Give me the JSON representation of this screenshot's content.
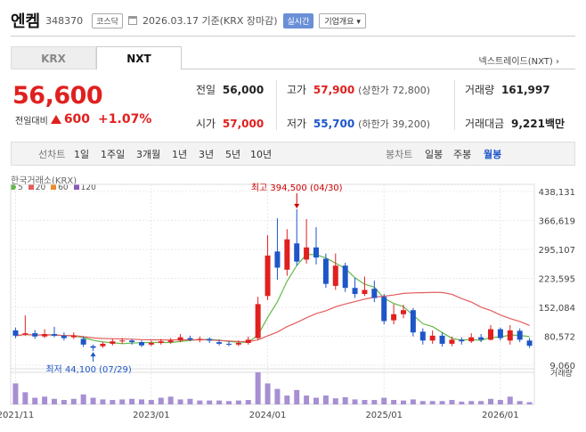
{
  "header": {
    "stock_name": "엔켐",
    "stock_code": "348370",
    "market_badge": "코스닥",
    "date_text": "2026.03.17 기준(KRX 장마감)",
    "realtime_badge": "실시간",
    "company_button": "기업개요 ▾"
  },
  "tabs": [
    {
      "label": "KRX"
    },
    {
      "label": "NXT"
    }
  ],
  "nxt_link": "넥스트레이드(NXT) ›",
  "price": {
    "current": "56,600",
    "change_label": "전일대비",
    "change_amount": "600",
    "change_pct": "+1.07%"
  },
  "stats": {
    "prev_close": {
      "label": "전일",
      "value": "56,000"
    },
    "open": {
      "label": "시가",
      "value": "57,000"
    },
    "high": {
      "label": "고가",
      "value": "57,900",
      "sub": "(상한가 72,800)"
    },
    "low": {
      "label": "저가",
      "value": "55,700",
      "sub": "(하한가 39,200)"
    },
    "volume": {
      "label": "거래량",
      "value": "161,997"
    },
    "amount": {
      "label": "거래대금",
      "value": "9,221",
      "unit": "백만"
    }
  },
  "periods": {
    "left_label": "선차트",
    "left_items": [
      "1일",
      "1주일",
      "3개월",
      "1년",
      "3년",
      "5년",
      "10년"
    ],
    "right_label": "봉차트",
    "right_items": [
      "일봉",
      "주봉",
      "월봉"
    ],
    "selected": "월봉"
  },
  "colors": {
    "up": "#e0201f",
    "down": "#1e56c8",
    "ma5": "#65b84a",
    "ma20": "#e45c5c",
    "ma60": "#f08a2a",
    "ma120": "#8b5ab8",
    "volume": "#a78fd2"
  },
  "chart_data": {
    "type": "candlestick",
    "source_label": "한국거래소(KRX)",
    "legend": [
      "5",
      "20",
      "60",
      "120"
    ],
    "y_ticks": [
      "438,131",
      "366,619",
      "295,107",
      "223,595",
      "152,084",
      "80,572",
      "9,060"
    ],
    "y_range": [
      9060,
      438131
    ],
    "x_ticks": [
      {
        "label": "2021/11",
        "index": 0
      },
      {
        "label": "2023/01",
        "index": 14
      },
      {
        "label": "2024/01",
        "index": 26
      },
      {
        "label": "2025/01",
        "index": 38
      },
      {
        "label": "2026/01",
        "index": 50
      }
    ],
    "annotations": {
      "high": {
        "label": "최고 394,500 (04/30)",
        "index": 29,
        "value": 394500
      },
      "low": {
        "label": "최저 44,100 (07/29)",
        "index": 8,
        "value": 44100
      }
    },
    "volume_label": "거래량",
    "candles": [
      [
        0,
        95000,
        82000,
        102000,
        76000,
        38
      ],
      [
        1,
        85000,
        88000,
        132000,
        82000,
        22
      ],
      [
        2,
        88000,
        80000,
        96000,
        74000,
        12
      ],
      [
        3,
        80000,
        86000,
        98000,
        76000,
        14
      ],
      [
        4,
        86000,
        82000,
        104000,
        78000,
        10
      ],
      [
        5,
        82000,
        76000,
        90000,
        70000,
        8
      ],
      [
        6,
        78000,
        82000,
        90000,
        74000,
        10
      ],
      [
        7,
        74000,
        60000,
        80000,
        54000,
        18
      ],
      [
        8,
        56000,
        52000,
        60000,
        44100,
        12
      ],
      [
        9,
        56000,
        62000,
        66000,
        52000,
        9
      ],
      [
        10,
        62000,
        68000,
        74000,
        58000,
        8
      ],
      [
        11,
        68000,
        70000,
        76000,
        62000,
        9
      ],
      [
        12,
        70000,
        66000,
        74000,
        60000,
        10
      ],
      [
        13,
        66000,
        58000,
        70000,
        54000,
        9
      ],
      [
        14,
        60000,
        64000,
        70000,
        56000,
        8
      ],
      [
        15,
        64000,
        68000,
        74000,
        60000,
        12
      ],
      [
        16,
        66000,
        70000,
        76000,
        62000,
        14
      ],
      [
        17,
        70000,
        78000,
        86000,
        66000,
        9
      ],
      [
        18,
        76000,
        72000,
        82000,
        68000,
        10
      ],
      [
        19,
        72000,
        74000,
        80000,
        66000,
        7
      ],
      [
        20,
        74000,
        70000,
        78000,
        64000,
        7
      ],
      [
        21,
        66000,
        62000,
        72000,
        58000,
        7
      ],
      [
        22,
        62000,
        60000,
        68000,
        56000,
        6
      ],
      [
        23,
        60000,
        64000,
        70000,
        56000,
        7
      ],
      [
        24,
        64000,
        72000,
        80000,
        60000,
        8
      ],
      [
        25,
        76000,
        160000,
        178000,
        72000,
        58
      ],
      [
        26,
        180000,
        280000,
        330000,
        170000,
        38
      ],
      [
        27,
        290000,
        250000,
        372000,
        220000,
        28
      ],
      [
        28,
        245000,
        320000,
        345000,
        230000,
        16
      ],
      [
        29,
        310000,
        265000,
        394500,
        255000,
        26
      ],
      [
        30,
        270000,
        300000,
        370000,
        260000,
        16
      ],
      [
        31,
        300000,
        275000,
        350000,
        258000,
        12
      ],
      [
        32,
        272000,
        210000,
        285000,
        200000,
        16
      ],
      [
        33,
        205000,
        255000,
        285000,
        195000,
        11
      ],
      [
        34,
        255000,
        200000,
        262000,
        190000,
        13
      ],
      [
        35,
        200000,
        185000,
        225000,
        175000,
        9
      ],
      [
        36,
        185000,
        195000,
        228000,
        180000,
        8
      ],
      [
        37,
        198000,
        175000,
        218000,
        165000,
        8
      ],
      [
        38,
        178000,
        118000,
        185000,
        110000,
        12
      ],
      [
        39,
        120000,
        135000,
        160000,
        110000,
        8
      ],
      [
        40,
        135000,
        145000,
        158000,
        125000,
        7
      ],
      [
        41,
        145000,
        90000,
        150000,
        80000,
        9
      ],
      [
        42,
        92000,
        70000,
        100000,
        60000,
        6
      ],
      [
        43,
        70000,
        82000,
        95000,
        62000,
        6
      ],
      [
        44,
        82000,
        62000,
        90000,
        55000,
        6
      ],
      [
        45,
        62000,
        72000,
        80000,
        56000,
        8
      ],
      [
        46,
        72000,
        68000,
        78000,
        60000,
        5
      ],
      [
        47,
        68000,
        78000,
        88000,
        64000,
        6
      ],
      [
        48,
        78000,
        72000,
        86000,
        66000,
        6
      ],
      [
        49,
        72000,
        98000,
        108000,
        70000,
        10
      ],
      [
        50,
        98000,
        76000,
        102000,
        70000,
        8
      ],
      [
        51,
        70000,
        95000,
        108000,
        60000,
        14
      ],
      [
        52,
        94000,
        72000,
        100000,
        66000,
        6
      ],
      [
        53,
        70000,
        57000,
        76000,
        52000,
        4
      ]
    ]
  }
}
